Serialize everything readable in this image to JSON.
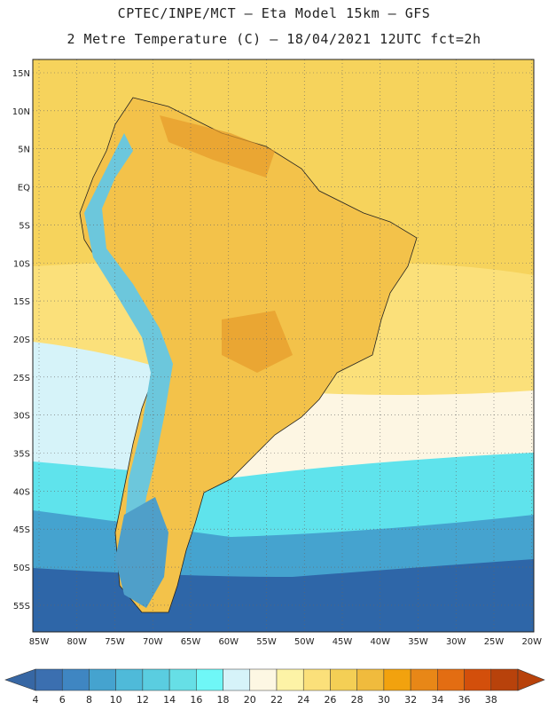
{
  "header": {
    "line1": "CPTEC/INPE/MCT –  Eta Model 15km – GFS",
    "line2": "2 Metre Temperature (C) – 18/04/2021 12UTC fct=2h"
  },
  "map": {
    "lat_labels": [
      "15N",
      "10N",
      "5N",
      "EQ",
      "5S",
      "10S",
      "15S",
      "20S",
      "25S",
      "30S",
      "35S",
      "40S",
      "45S",
      "50S",
      "55S"
    ],
    "lon_labels": [
      "85W",
      "80W",
      "75W",
      "70W",
      "65W",
      "60W",
      "55W",
      "50W",
      "45W",
      "40W",
      "35W",
      "30W",
      "25W",
      "20W"
    ],
    "lon_range": [
      -85,
      -20
    ],
    "lat_range": [
      -58,
      17
    ]
  },
  "colorbar": {
    "labels": [
      "4",
      "6",
      "8",
      "10",
      "12",
      "14",
      "16",
      "18",
      "20",
      "22",
      "24",
      "26",
      "28",
      "30",
      "32",
      "34",
      "36",
      "38"
    ],
    "colors": [
      "#3b6fb0",
      "#3f86c2",
      "#45a3cf",
      "#4fbad9",
      "#5acde0",
      "#66dfe6",
      "#6ff7f7",
      "#d6f3f9",
      "#fdf7e3",
      "#fdf3a6",
      "#fbe07a",
      "#f4cf55",
      "#f0bb3d",
      "#f2a20e",
      "#e88717",
      "#e36d12",
      "#d34f0b",
      "#b8420b"
    ],
    "under_color": "#3767a4",
    "over_color": "#b8420b"
  },
  "palette": {
    "ocean_deep": "#2e66a8",
    "ocean_mid": "#45a3cf",
    "ocean_cyan": "#5fe3ec",
    "ocean_light": "#d6f3f9",
    "ocean_cream": "#fdf6e3",
    "ocean_warm": "#fbe07a",
    "ocean_tropical": "#f6d35c",
    "land_base": "#f3c24a",
    "land_hot": "#e59a2a",
    "andes": "#6cc7dc",
    "patagonia": "#4f9fc9"
  }
}
